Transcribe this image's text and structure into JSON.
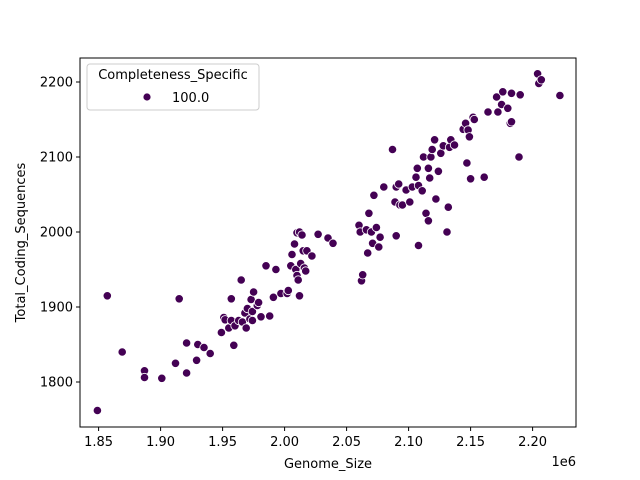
{
  "chart_data": {
    "type": "scatter",
    "xlabel": "Genome_Size",
    "ylabel": "Total_Coding_Sequences",
    "x_offset_label": "1e6",
    "xlim": [
      1.835,
      2.235
    ],
    "ylim": [
      1740,
      2232
    ],
    "xticks": [
      1.85,
      1.9,
      1.95,
      2.0,
      2.05,
      2.1,
      2.15,
      2.2
    ],
    "xtick_labels": [
      "1.85",
      "1.90",
      "1.95",
      "2.00",
      "2.05",
      "2.10",
      "2.15",
      "2.20"
    ],
    "yticks": [
      1800,
      1900,
      2000,
      2100,
      2200
    ],
    "ytick_labels": [
      "1800",
      "1900",
      "2000",
      "2100",
      "2200"
    ],
    "grid": false,
    "legend": {
      "title": "Completeness_Specific",
      "placement": "upper-left",
      "entries": [
        {
          "label": "100.0",
          "color": "#440154"
        }
      ]
    },
    "series": [
      {
        "name": "100.0",
        "color": "#440154",
        "points": [
          [
            1.849,
            1762
          ],
          [
            1.857,
            1915
          ],
          [
            1.869,
            1840
          ],
          [
            1.887,
            1815
          ],
          [
            1.887,
            1806
          ],
          [
            1.901,
            1805
          ],
          [
            1.912,
            1825
          ],
          [
            1.915,
            1911
          ],
          [
            1.921,
            1852
          ],
          [
            1.921,
            1812
          ],
          [
            1.929,
            1829
          ],
          [
            1.93,
            1850
          ],
          [
            1.935,
            1846
          ],
          [
            1.94,
            1838
          ],
          [
            1.949,
            1866
          ],
          [
            1.951,
            1886
          ],
          [
            1.952,
            1883
          ],
          [
            1.955,
            1872
          ],
          [
            1.957,
            1911
          ],
          [
            1.957,
            1882
          ],
          [
            1.959,
            1849
          ],
          [
            1.96,
            1875
          ],
          [
            1.963,
            1882
          ],
          [
            1.965,
            1936
          ],
          [
            1.966,
            1880
          ],
          [
            1.968,
            1892
          ],
          [
            1.969,
            1872
          ],
          [
            1.97,
            1898
          ],
          [
            1.972,
            1884
          ],
          [
            1.973,
            1910
          ],
          [
            1.974,
            1894
          ],
          [
            1.974,
            1882
          ],
          [
            1.975,
            1920
          ],
          [
            1.978,
            1902
          ],
          [
            1.979,
            1906
          ],
          [
            1.981,
            1887
          ],
          [
            1.985,
            1955
          ],
          [
            1.988,
            1888
          ],
          [
            1.991,
            1913
          ],
          [
            1.993,
            1950
          ],
          [
            1.997,
            1918
          ],
          [
            2.002,
            1918
          ],
          [
            2.003,
            1922
          ],
          [
            2.005,
            1955
          ],
          [
            2.006,
            1970
          ],
          [
            2.008,
            1984
          ],
          [
            2.009,
            1950
          ],
          [
            2.01,
            1942
          ],
          [
            2.01,
            1999
          ],
          [
            2.011,
            1936
          ],
          [
            2.012,
            1915
          ],
          [
            2.012,
            2000
          ],
          [
            2.013,
            1958
          ],
          [
            2.014,
            1996
          ],
          [
            2.015,
            1975
          ],
          [
            2.016,
            1952
          ],
          [
            2.017,
            1948
          ],
          [
            2.018,
            1975
          ],
          [
            2.022,
            1968
          ],
          [
            2.027,
            1997
          ],
          [
            2.035,
            1992
          ],
          [
            2.039,
            1985
          ],
          [
            2.06,
            2009
          ],
          [
            2.061,
            2000
          ],
          [
            2.062,
            1935
          ],
          [
            2.063,
            1943
          ],
          [
            2.066,
            2003
          ],
          [
            2.067,
            1972
          ],
          [
            2.068,
            2025
          ],
          [
            2.07,
            2000
          ],
          [
            2.071,
            1985
          ],
          [
            2.072,
            2049
          ],
          [
            2.074,
            2006
          ],
          [
            2.076,
            1980
          ],
          [
            2.077,
            1993
          ],
          [
            2.08,
            2060
          ],
          [
            2.087,
            2110
          ],
          [
            2.089,
            2040
          ],
          [
            2.09,
            2060
          ],
          [
            2.09,
            1995
          ],
          [
            2.092,
            2064
          ],
          [
            2.093,
            2036
          ],
          [
            2.095,
            2036
          ],
          [
            2.098,
            2056
          ],
          [
            2.101,
            2040
          ],
          [
            2.103,
            2060
          ],
          [
            2.106,
            2073
          ],
          [
            2.107,
            2085
          ],
          [
            2.108,
            2062
          ],
          [
            2.108,
            1982
          ],
          [
            2.111,
            2055
          ],
          [
            2.112,
            2100
          ],
          [
            2.114,
            2025
          ],
          [
            2.116,
            2015
          ],
          [
            2.116,
            2085
          ],
          [
            2.117,
            2072
          ],
          [
            2.118,
            2100
          ],
          [
            2.119,
            2110
          ],
          [
            2.121,
            2123
          ],
          [
            2.122,
            2044
          ],
          [
            2.124,
            2081
          ],
          [
            2.126,
            2105
          ],
          [
            2.128,
            2115
          ],
          [
            2.131,
            2000
          ],
          [
            2.132,
            2033
          ],
          [
            2.133,
            2113
          ],
          [
            2.134,
            2123
          ],
          [
            2.137,
            2116
          ],
          [
            2.144,
            2137
          ],
          [
            2.146,
            2145
          ],
          [
            2.147,
            2092
          ],
          [
            2.148,
            2136
          ],
          [
            2.149,
            2127
          ],
          [
            2.15,
            2071
          ],
          [
            2.152,
            2153
          ],
          [
            2.153,
            2150
          ],
          [
            2.161,
            2073
          ],
          [
            2.164,
            2160
          ],
          [
            2.171,
            2180
          ],
          [
            2.172,
            2160
          ],
          [
            2.175,
            2170
          ],
          [
            2.176,
            2187
          ],
          [
            2.18,
            2165
          ],
          [
            2.182,
            2145
          ],
          [
            2.183,
            2147
          ],
          [
            2.183,
            2185
          ],
          [
            2.189,
            2100
          ],
          [
            2.19,
            2183
          ],
          [
            2.204,
            2211
          ],
          [
            2.205,
            2198
          ],
          [
            2.207,
            2203
          ],
          [
            2.222,
            2182
          ]
        ]
      }
    ]
  }
}
